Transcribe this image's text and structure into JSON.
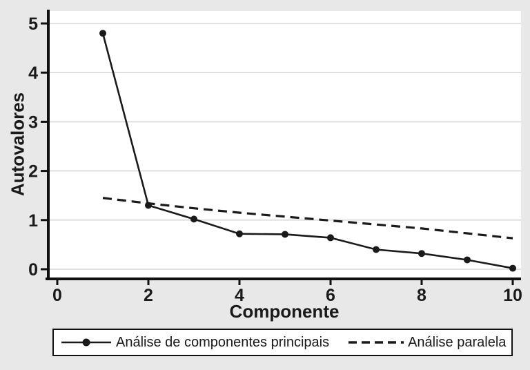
{
  "chart_data": {
    "type": "line",
    "title": "",
    "xlabel": "Componente",
    "ylabel": "Autovalores",
    "x": [
      1,
      2,
      3,
      4,
      5,
      6,
      7,
      8,
      9,
      10
    ],
    "series": [
      {
        "name": "Análise de componentes principais",
        "style": "solid-markers",
        "values": [
          4.8,
          1.3,
          1.02,
          0.72,
          0.71,
          0.64,
          0.4,
          0.32,
          0.19,
          0.02
        ]
      },
      {
        "name": "Análise paralela",
        "style": "dashed",
        "values": [
          1.45,
          1.34,
          1.24,
          1.15,
          1.07,
          0.99,
          0.91,
          0.83,
          0.73,
          0.63
        ]
      }
    ],
    "xticks": [
      0,
      2,
      4,
      6,
      8,
      10
    ],
    "yticks": [
      0,
      1,
      2,
      3,
      4,
      5
    ],
    "xlim": [
      0,
      10.2
    ],
    "ylim": [
      0,
      5.3
    ],
    "grid": "horizontal",
    "legend_position": "bottom",
    "colors": {
      "background": "#e8e8e8",
      "plot_bg": "#ffffff",
      "line": "#1a1a1a",
      "axis": "#111111",
      "gridline": "#d9d9d9"
    }
  }
}
